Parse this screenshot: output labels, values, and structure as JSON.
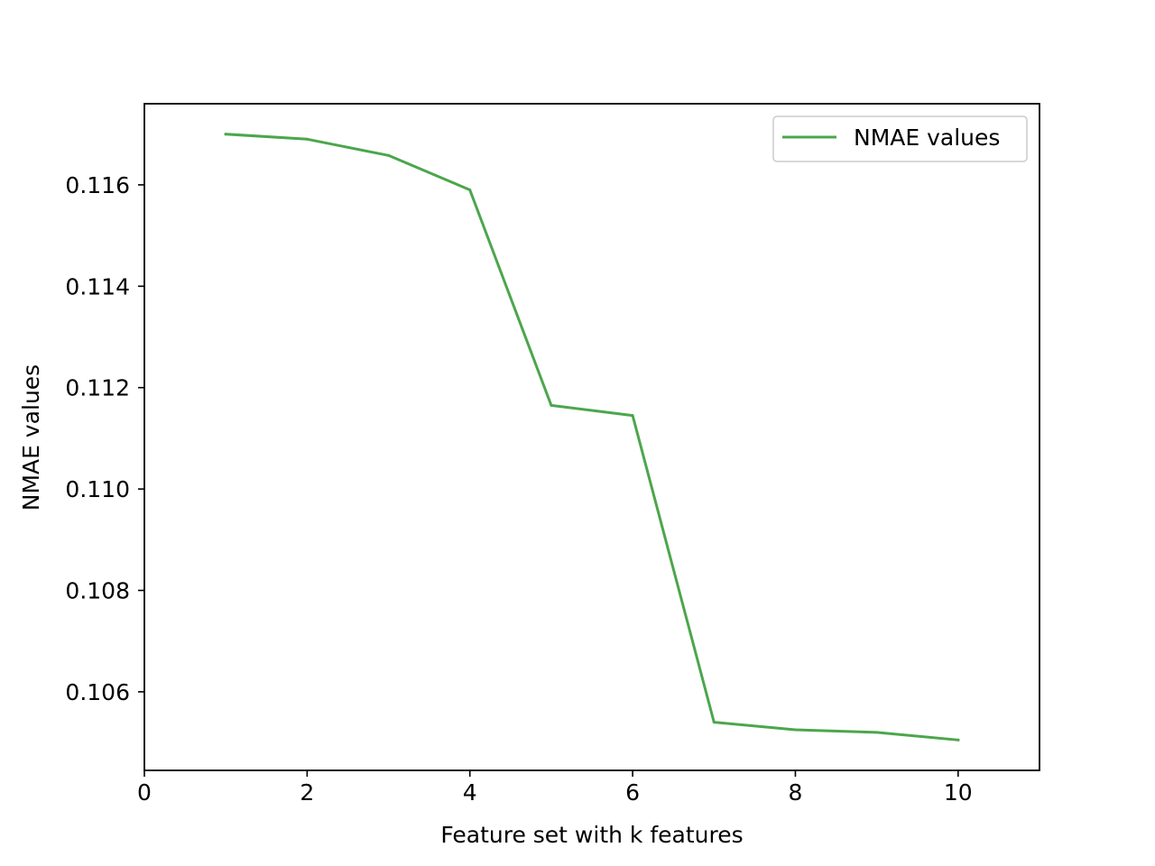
{
  "chart_data": {
    "type": "line",
    "xlabel": "Feature set with k features",
    "ylabel": "NMAE values",
    "xlim": [
      0,
      11
    ],
    "ylim": [
      0.10445,
      0.1176
    ],
    "xticks": [
      0,
      2,
      4,
      6,
      8,
      10
    ],
    "xtick_labels": [
      "0",
      "2",
      "4",
      "6",
      "8",
      "10"
    ],
    "yticks": [
      0.106,
      0.108,
      0.11,
      0.112,
      0.114,
      0.116
    ],
    "ytick_labels": [
      "0.106",
      "0.108",
      "0.110",
      "0.112",
      "0.114",
      "0.116"
    ],
    "grid": false,
    "legend_position": "top-right",
    "series": [
      {
        "name": "NMAE values",
        "color": "#4ca64c",
        "x": [
          1,
          2,
          3,
          4,
          5,
          6,
          7,
          8,
          9,
          10
        ],
        "y": [
          0.117,
          0.1169,
          0.11658,
          0.1159,
          0.11165,
          0.11145,
          0.1054,
          0.10525,
          0.1052,
          0.10505
        ]
      }
    ]
  }
}
